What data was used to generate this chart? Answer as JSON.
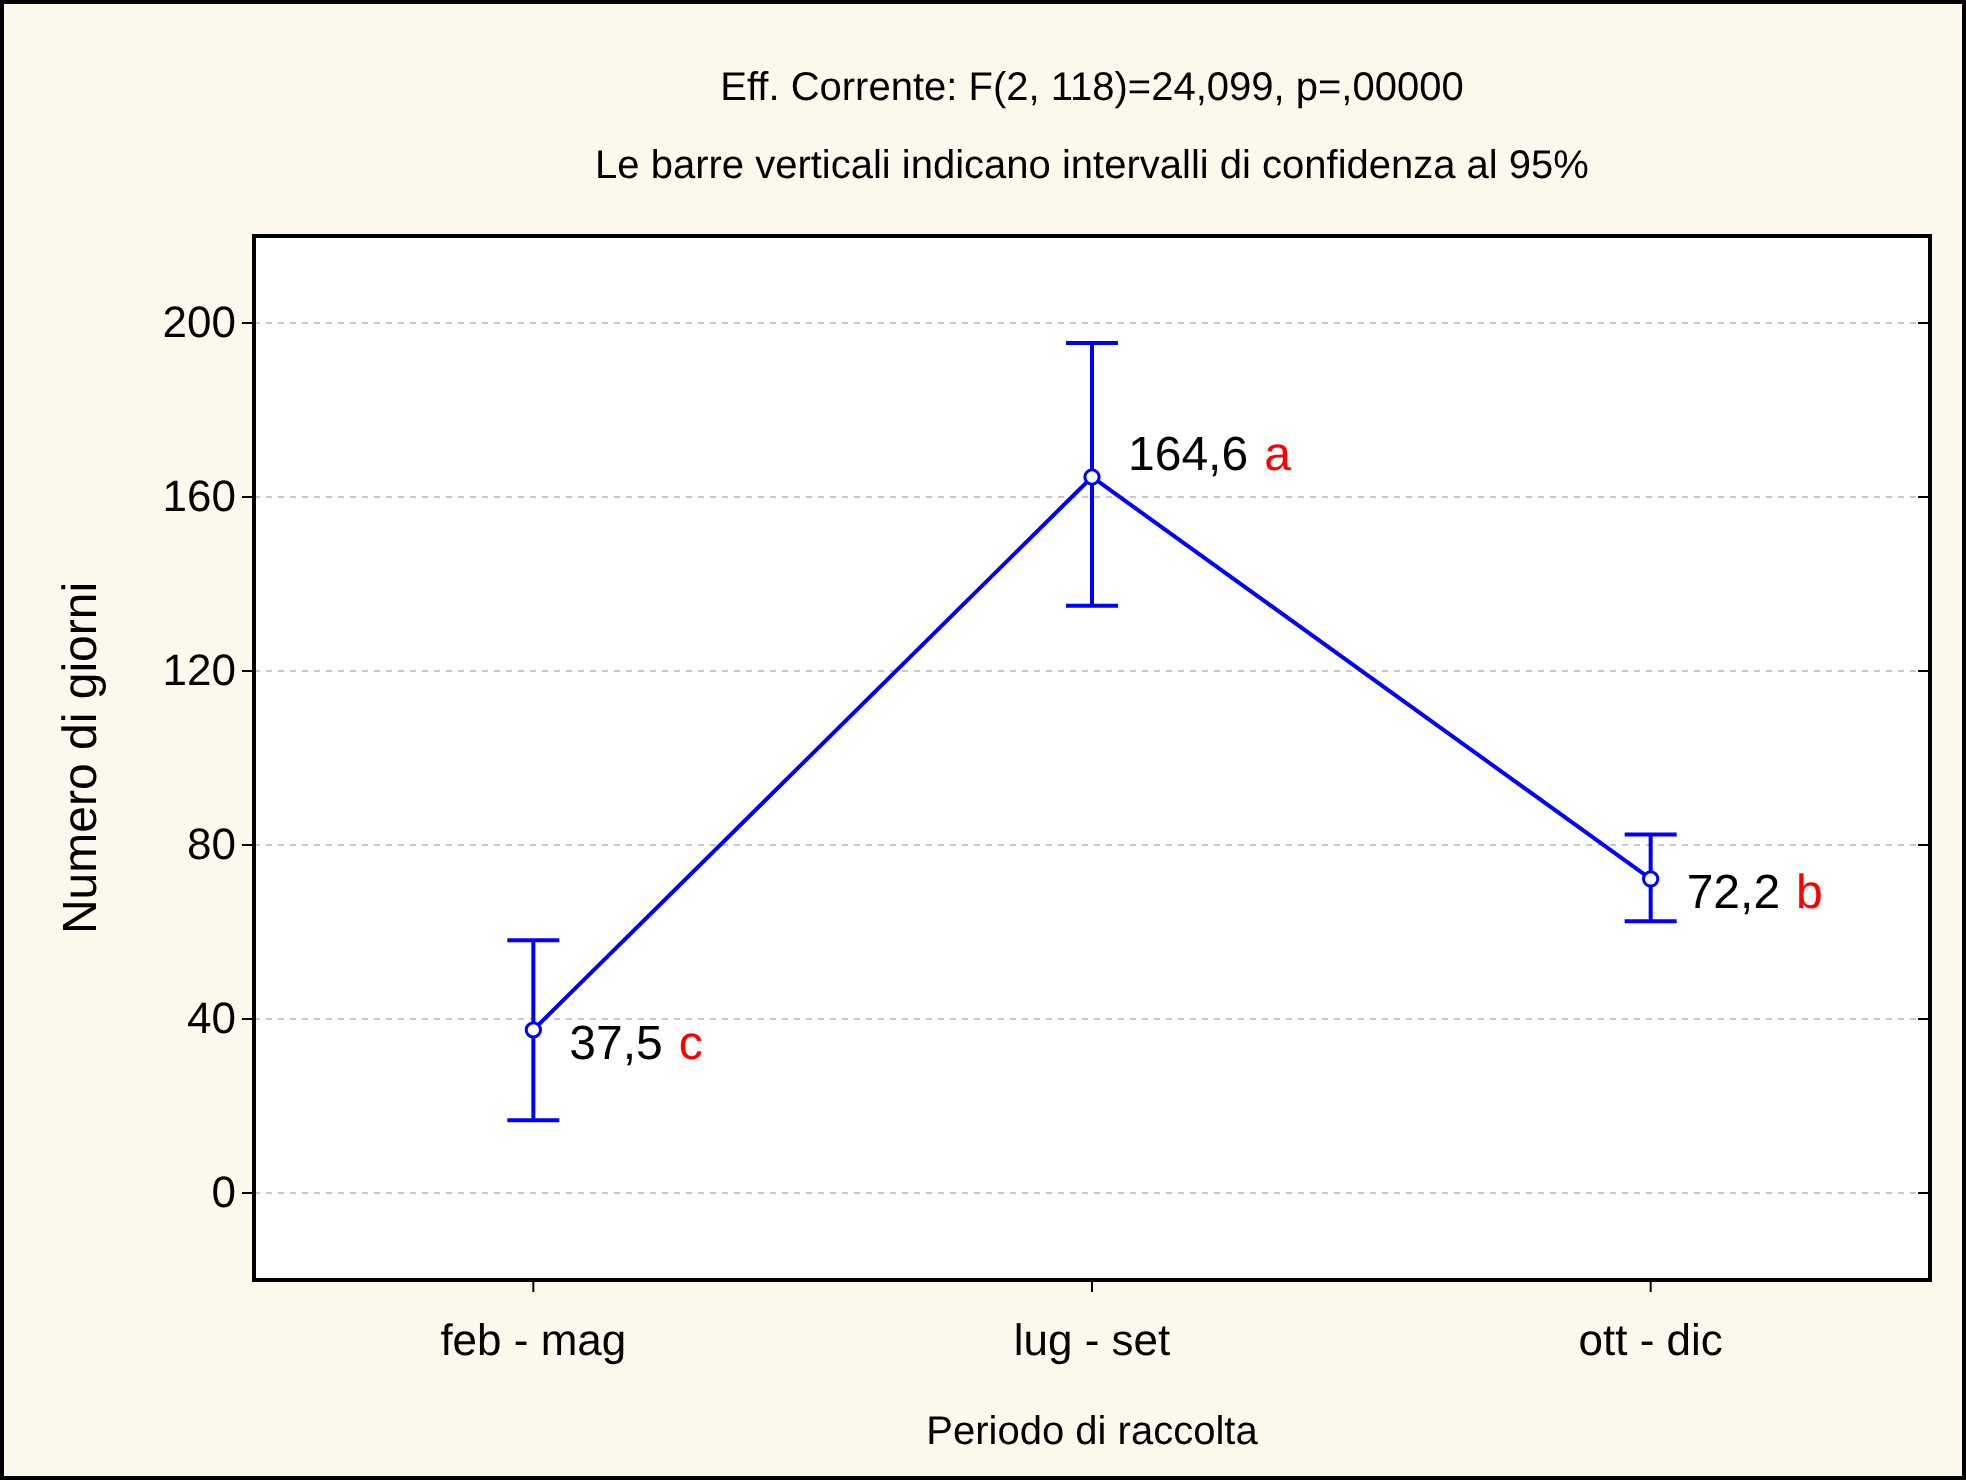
{
  "chart_data": {
    "type": "line",
    "title": "Eff. Corrente: F(2, 118)=24,099, p=,00000",
    "subtitle": "Le barre verticali indicano intervalli di confidenza al 95%",
    "xlabel": "Periodo di raccolta",
    "ylabel": "Numero di giorni",
    "categories": [
      "feb - mag",
      "lug - set",
      "ott - dic"
    ],
    "series": [
      {
        "color": "#0000ff",
        "values": [
          37.5,
          164.6,
          72.2
        ],
        "errors": [
          [
            16.7,
            58.1
          ],
          [
            135,
            195.4
          ],
          [
            62.5,
            82.4
          ]
        ],
        "value_labels": [
          "37,5",
          "164,6",
          "72,2"
        ]
      }
    ],
    "annotations": [
      "c",
      "a",
      "b"
    ],
    "ylim": [
      -20,
      220
    ],
    "yticks": [
      0,
      40,
      80,
      120,
      160,
      200
    ],
    "grid": "y",
    "marker": "circle",
    "line_style": "solid"
  }
}
